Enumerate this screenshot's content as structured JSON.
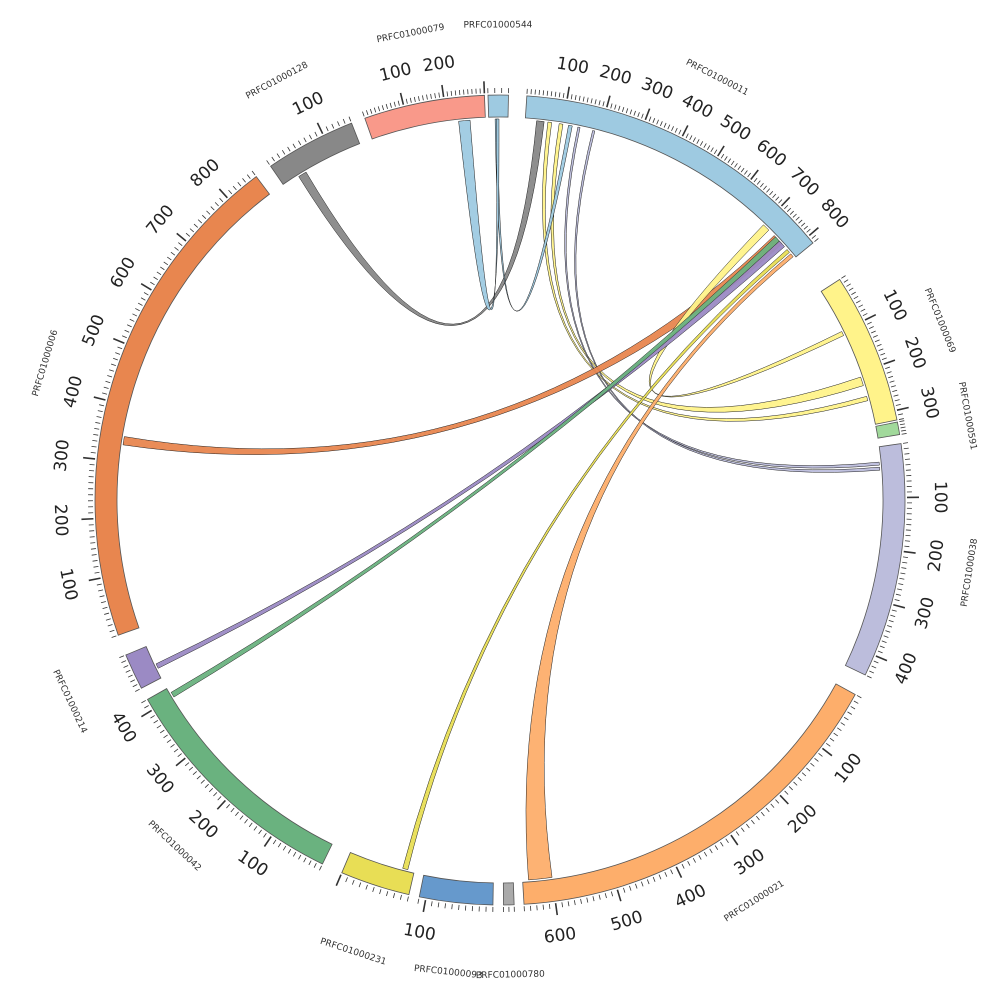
{
  "contigs": [
    {
      "name": "PRFC01000544",
      "color": "#9ecae1",
      "length": 30,
      "ticks": []
    },
    {
      "name": "PRFC01000011",
      "color": "#9ecae1",
      "length": 820,
      "ticks": [
        100,
        200,
        300,
        400,
        500,
        600,
        700,
        800
      ]
    },
    {
      "name": "PRFC01000069",
      "color": "#fff38a",
      "length": 320,
      "ticks": [
        100,
        200,
        300
      ]
    },
    {
      "name": "PRFC01000591",
      "color": "#a1d99b",
      "length": 40,
      "ticks": []
    },
    {
      "name": "PRFC01000038",
      "color": "#bcbddc",
      "length": 440,
      "ticks": [
        100,
        200,
        300,
        400
      ]
    },
    {
      "name": "PRFC01000021",
      "color": "#fdae6b",
      "length": 650,
      "ticks": [
        100,
        200,
        300,
        400,
        500,
        600
      ]
    },
    {
      "name": "PRFC01000780",
      "color": "#aaaaaa",
      "length": 20,
      "ticks": []
    },
    {
      "name": "PRFC01000093",
      "color": "#6699cc",
      "length": 110,
      "ticks": [
        100
      ]
    },
    {
      "name": "PRFC01000231",
      "color": "#e8de55",
      "length": 100,
      "ticks": []
    },
    {
      "name": "PRFC01000042",
      "color": "#6ab27f",
      "length": 420,
      "ticks": [
        100,
        200,
        300,
        400
      ]
    },
    {
      "name": "PRFC01000214",
      "color": "#9b8ac4",
      "length": 70,
      "ticks": []
    },
    {
      "name": "PRFC01000006",
      "color": "#e8864f",
      "length": 860,
      "ticks": [
        100,
        200,
        300,
        400,
        500,
        600,
        700,
        800
      ]
    },
    {
      "name": "PRFC01000128",
      "color": "#888888",
      "length": 150,
      "ticks": [
        100
      ]
    },
    {
      "name": "PRFC01000079",
      "color": "#f9998a",
      "length": 300,
      "ticks": [
        100,
        200
      ]
    }
  ],
  "links": [
    {
      "color": "#9ecae1",
      "a": [
        1,
        30
      ],
      "b": [
        1,
        50
      ]
    },
    {
      "color": "#e8864f",
      "a": [
        1,
        60
      ],
      "b": [
        1,
        70
      ]
    },
    {
      "color": "#a1d99b",
      "a": [
        1,
        90
      ],
      "b": [
        1,
        100
      ]
    },
    {
      "color": "#fff38a",
      "a": [
        1,
        115
      ],
      "b": [
        1,
        125
      ]
    },
    {
      "color": "#333333",
      "a": [
        1,
        140
      ],
      "b": [
        1,
        146
      ]
    },
    {
      "color": "#f9998a",
      "a": [
        1,
        155
      ],
      "b": [
        1,
        165
      ]
    },
    {
      "color": "#ffffff",
      "a": [
        1,
        180
      ],
      "b": [
        1,
        186
      ]
    },
    {
      "color": "#9ecae1",
      "a": [
        1,
        210
      ],
      "b": [
        1,
        220
      ]
    },
    {
      "color": "#bcbddc",
      "a": [
        1,
        240
      ],
      "b": [
        1,
        246
      ]
    },
    {
      "color": "#fff38a",
      "a": [
        1,
        330
      ],
      "b": [
        1,
        336
      ]
    },
    {
      "color": "#e8864f",
      "a": [
        1,
        400
      ],
      "b": [
        1,
        406
      ]
    },
    {
      "color": "#9b8ac4",
      "a": [
        1,
        480
      ],
      "b": [
        1,
        486
      ]
    },
    {
      "color": "#aaaaaa",
      "a": [
        1,
        520
      ],
      "b": [
        1,
        526
      ]
    },
    {
      "color": "#ffffff",
      "a": [
        1,
        550
      ],
      "b": [
        1,
        556
      ]
    },
    {
      "color": "#6ab27f",
      "a": [
        1,
        575
      ],
      "b": [
        1,
        581
      ]
    },
    {
      "color": "#ffffff",
      "a": [
        1,
        640
      ],
      "b": [
        1,
        646
      ]
    },
    {
      "color": "#9b8ac4",
      "a": [
        1,
        680
      ],
      "b": [
        1,
        686
      ]
    },
    {
      "color": "#a1d99b",
      "a": [
        1,
        700
      ],
      "b": [
        1,
        705
      ]
    },
    {
      "color": "#e8864f",
      "a": [
        1,
        735
      ],
      "b": [
        1,
        740
      ]
    },
    {
      "color": "#bcbddc",
      "a": [
        1,
        745
      ],
      "b": [
        1,
        750
      ]
    },
    {
      "color": "#6699cc",
      "a": [
        1,
        780
      ],
      "b": [
        1,
        786
      ]
    },
    {
      "color": "#e8de55",
      "a": [
        1,
        790
      ],
      "b": [
        1,
        796
      ]
    },
    {
      "color": "#a1d99b",
      "a": [
        2,
        230
      ],
      "b": [
        2,
        250
      ]
    },
    {
      "color": "#fdae6b",
      "a": [
        3,
        10
      ],
      "b": [
        3,
        20
      ]
    },
    {
      "color": "#aaaaaa",
      "a": [
        4,
        30
      ],
      "b": [
        4,
        36
      ]
    },
    {
      "color": "#6ab27f",
      "a": [
        6,
        520
      ],
      "b": [
        6,
        540
      ]
    },
    {
      "color": "#fff38a",
      "a": [
        6,
        560
      ],
      "b": [
        6,
        570
      ]
    },
    {
      "color": "#6699cc",
      "a": [
        7,
        30
      ],
      "b": [
        7,
        40
      ]
    },
    {
      "color": "#9b8ac4",
      "a": [
        8,
        10
      ],
      "b": [
        8,
        18
      ]
    },
    {
      "color": "#9b8ac4",
      "a": [
        9,
        400
      ],
      "b": [
        9,
        410
      ]
    },
    {
      "color": "#bcbddc",
      "a": [
        10,
        20
      ],
      "b": [
        10,
        30
      ]
    },
    {
      "color": "#f9998a",
      "a": [
        11,
        130
      ],
      "b": [
        11,
        145
      ]
    },
    {
      "color": "#888888",
      "a": [
        12,
        20
      ],
      "b": [
        12,
        30
      ]
    },
    {
      "color": "#fff38a",
      "a": [
        13,
        50
      ],
      "b": [
        13,
        60
      ]
    }
  ],
  "link_pairs": [
    [
      1,
      30,
      1,
      50,
      12,
      30,
      12,
      45
    ],
    [
      1,
      60,
      1,
      70,
      2,
      255,
      2,
      265
    ],
    [
      1,
      90,
      1,
      100,
      2,
      210,
      2,
      230
    ],
    [
      1,
      115,
      1,
      125,
      0,
      10,
      0,
      14
    ],
    [
      1,
      140,
      1,
      146,
      4,
      30,
      4,
      36
    ],
    [
      1,
      180,
      1,
      186,
      4,
      40,
      4,
      46
    ],
    [
      1,
      740,
      1,
      770,
      11,
      330,
      11,
      345
    ],
    [
      1,
      700,
      1,
      720,
      2,
      100,
      2,
      110
    ],
    [
      1,
      760,
      1,
      780,
      10,
      20,
      10,
      30
    ],
    [
      1,
      745,
      1,
      760,
      9,
      400,
      9,
      410
    ],
    [
      1,
      790,
      1,
      800,
      8,
      10,
      8,
      18
    ],
    [
      1,
      805,
      1,
      815,
      5,
      600,
      5,
      640
    ],
    [
      13,
      230,
      13,
      260,
      0,
      12,
      0,
      16
    ]
  ]
}
